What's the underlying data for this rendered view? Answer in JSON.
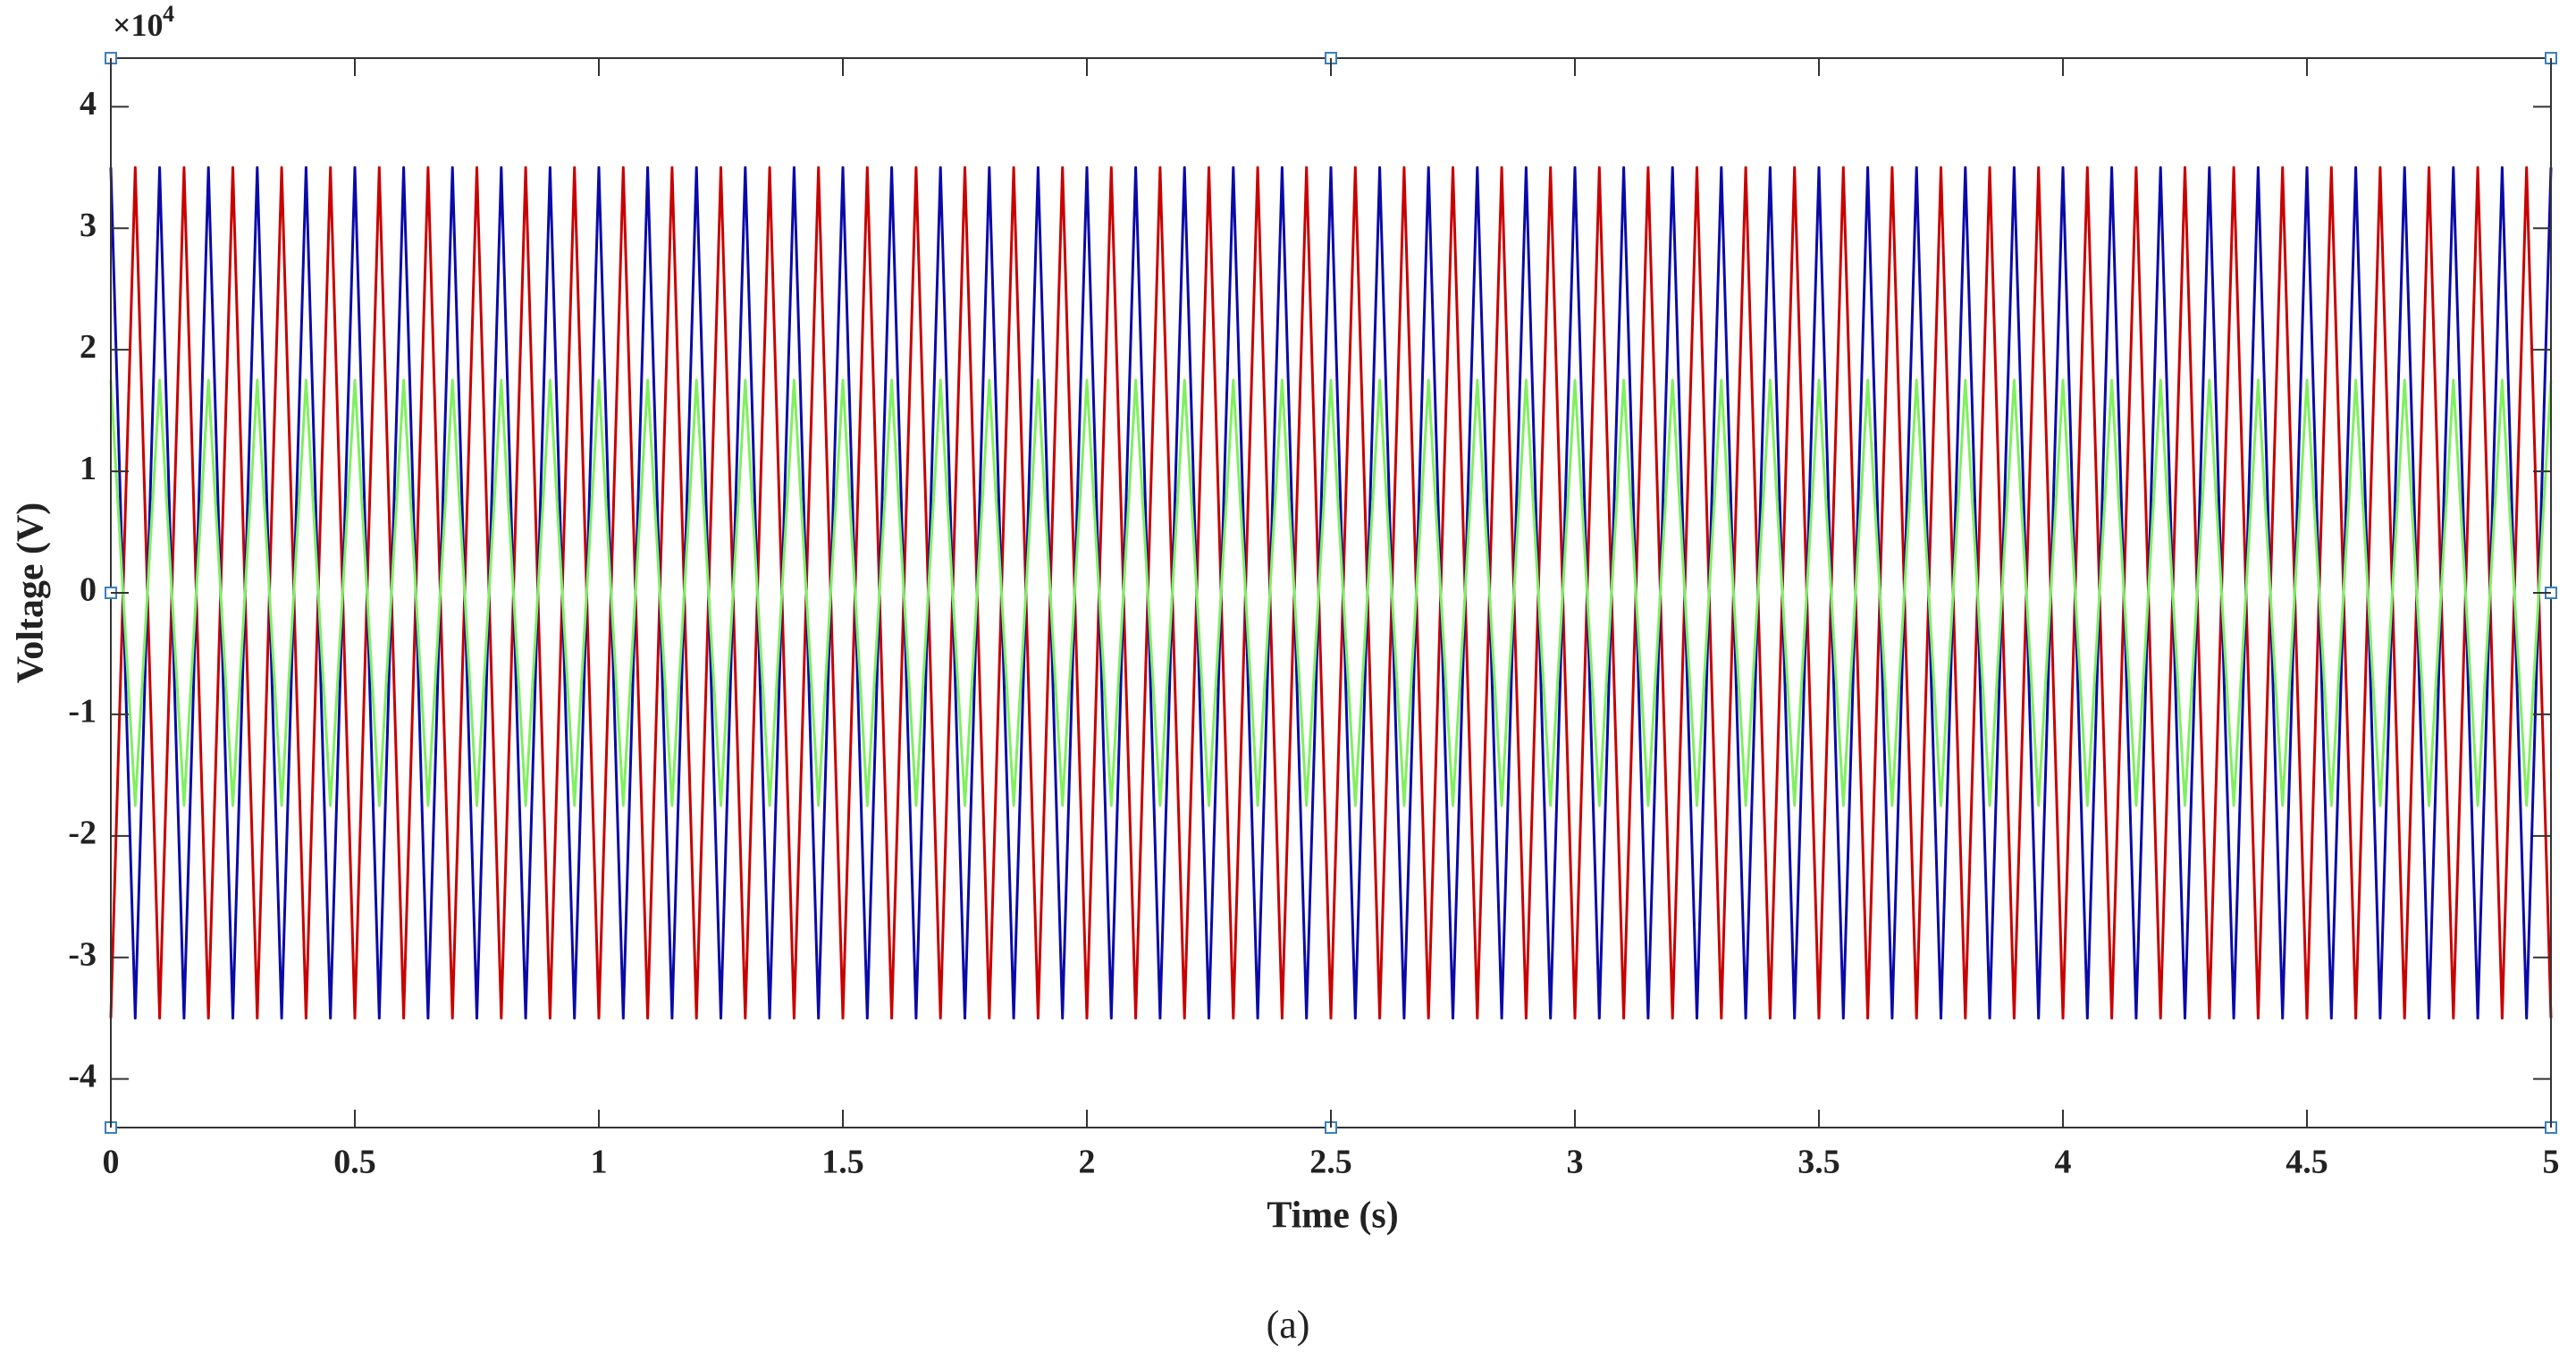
{
  "chart_data": {
    "type": "line",
    "xlabel": "Time (s)",
    "ylabel": "Voltage (V)",
    "y_multiplier": "×10",
    "y_multiplier_exp": "4",
    "caption": "(a)",
    "x": [
      0,
      0.05,
      0.1,
      0.15,
      0.2,
      0.25,
      0.3,
      0.35,
      0.4,
      0.45,
      0.5,
      0.55,
      0.6,
      0.65,
      0.7,
      0.75,
      0.8,
      0.85,
      0.9,
      0.95,
      1,
      1.05,
      1.1,
      1.15,
      1.2,
      1.25,
      1.3,
      1.35,
      1.4,
      1.45,
      1.5,
      1.55,
      1.6,
      1.65,
      1.7,
      1.75,
      1.8,
      1.85,
      1.9,
      1.95,
      2,
      2.05,
      2.1,
      2.15,
      2.2,
      2.25,
      2.3,
      2.35,
      2.4,
      2.45,
      2.5,
      2.55,
      2.6,
      2.65,
      2.7,
      2.75,
      2.8,
      2.85,
      2.9,
      2.95,
      3,
      3.05,
      3.1,
      3.15,
      3.2,
      3.25,
      3.3,
      3.35,
      3.4,
      3.45,
      3.5,
      3.55,
      3.6,
      3.65,
      3.7,
      3.75,
      3.8,
      3.85,
      3.9,
      3.95,
      4,
      4.05,
      4.1,
      4.15,
      4.2,
      4.25,
      4.3,
      4.35,
      4.4,
      4.45,
      4.5,
      4.55,
      4.6,
      4.65,
      4.7,
      4.75,
      4.8,
      4.85,
      4.9,
      4.95,
      5
    ],
    "series": [
      {
        "color": "#c80000",
        "values": [
          -35000,
          35000,
          -35000,
          35000,
          -35000,
          35000,
          -35000,
          35000,
          -35000,
          35000,
          -35000,
          35000,
          -35000,
          35000,
          -35000,
          35000,
          -35000,
          35000,
          -35000,
          35000,
          -35000,
          35000,
          -35000,
          35000,
          -35000,
          35000,
          -35000,
          35000,
          -35000,
          35000,
          -35000,
          35000,
          -35000,
          35000,
          -35000,
          35000,
          -35000,
          35000,
          -35000,
          35000,
          -35000,
          35000,
          -35000,
          35000,
          -35000,
          35000,
          -35000,
          35000,
          -35000,
          35000,
          -35000,
          35000,
          -35000,
          35000,
          -35000,
          35000,
          -35000,
          35000,
          -35000,
          35000,
          -35000,
          35000,
          -35000,
          35000,
          -35000,
          35000,
          -35000,
          35000,
          -35000,
          35000,
          -35000,
          35000,
          -35000,
          35000,
          -35000,
          35000,
          -35000,
          35000,
          -35000,
          35000,
          -35000,
          35000,
          -35000,
          35000,
          -35000,
          35000,
          -35000,
          35000,
          -35000,
          35000,
          -35000,
          35000,
          -35000,
          35000,
          -35000,
          35000,
          -35000,
          35000,
          -35000,
          35000,
          -35000
        ]
      },
      {
        "color": "#0a0aa8",
        "values": [
          35000,
          -35000,
          35000,
          -35000,
          35000,
          -35000,
          35000,
          -35000,
          35000,
          -35000,
          35000,
          -35000,
          35000,
          -35000,
          35000,
          -35000,
          35000,
          -35000,
          35000,
          -35000,
          35000,
          -35000,
          35000,
          -35000,
          35000,
          -35000,
          35000,
          -35000,
          35000,
          -35000,
          35000,
          -35000,
          35000,
          -35000,
          35000,
          -35000,
          35000,
          -35000,
          35000,
          -35000,
          35000,
          -35000,
          35000,
          -35000,
          35000,
          -35000,
          35000,
          -35000,
          35000,
          -35000,
          35000,
          -35000,
          35000,
          -35000,
          35000,
          -35000,
          35000,
          -35000,
          35000,
          -35000,
          35000,
          -35000,
          35000,
          -35000,
          35000,
          -35000,
          35000,
          -35000,
          35000,
          -35000,
          35000,
          -35000,
          35000,
          -35000,
          35000,
          -35000,
          35000,
          -35000,
          35000,
          -35000,
          35000,
          -35000,
          35000,
          -35000,
          35000,
          -35000,
          35000,
          -35000,
          35000,
          -35000,
          35000,
          -35000,
          35000,
          -35000,
          35000,
          -35000,
          35000,
          -35000,
          35000,
          -35000,
          35000
        ]
      },
      {
        "color": "#80f060",
        "values": [
          17500,
          -17500,
          17500,
          -17500,
          17500,
          -17500,
          17500,
          -17500,
          17500,
          -17500,
          17500,
          -17500,
          17500,
          -17500,
          17500,
          -17500,
          17500,
          -17500,
          17500,
          -17500,
          17500,
          -17500,
          17500,
          -17500,
          17500,
          -17500,
          17500,
          -17500,
          17500,
          -17500,
          17500,
          -17500,
          17500,
          -17500,
          17500,
          -17500,
          17500,
          -17500,
          17500,
          -17500,
          17500,
          -17500,
          17500,
          -17500,
          17500,
          -17500,
          17500,
          -17500,
          17500,
          -17500,
          17500,
          -17500,
          17500,
          -17500,
          17500,
          -17500,
          17500,
          -17500,
          17500,
          -17500,
          17500,
          -17500,
          17500,
          -17500,
          17500,
          -17500,
          17500,
          -17500,
          17500,
          -17500,
          17500,
          -17500,
          17500,
          -17500,
          17500,
          -17500,
          17500,
          -17500,
          17500,
          -17500,
          17500,
          -17500,
          17500,
          -17500,
          17500,
          -17500,
          17500,
          -17500,
          17500,
          -17500,
          17500,
          -17500,
          17500,
          -17500,
          17500,
          -17500,
          17500,
          -17500,
          17500,
          -17500,
          17500
        ]
      }
    ],
    "xlim": [
      0,
      5
    ],
    "xticks": [
      0,
      0.5,
      1,
      1.5,
      2,
      2.5,
      3,
      3.5,
      4,
      4.5,
      5
    ],
    "ylim": [
      -44000,
      44000
    ],
    "yticks": [
      {
        "value": -40000,
        "label": "-4"
      },
      {
        "value": -30000,
        "label": "-3"
      },
      {
        "value": -20000,
        "label": "-2"
      },
      {
        "value": -10000,
        "label": "-1"
      },
      {
        "value": 0,
        "label": "0"
      },
      {
        "value": 10000,
        "label": "1"
      },
      {
        "value": 20000,
        "label": "2"
      },
      {
        "value": 30000,
        "label": "3"
      },
      {
        "value": 40000,
        "label": "4"
      }
    ]
  }
}
